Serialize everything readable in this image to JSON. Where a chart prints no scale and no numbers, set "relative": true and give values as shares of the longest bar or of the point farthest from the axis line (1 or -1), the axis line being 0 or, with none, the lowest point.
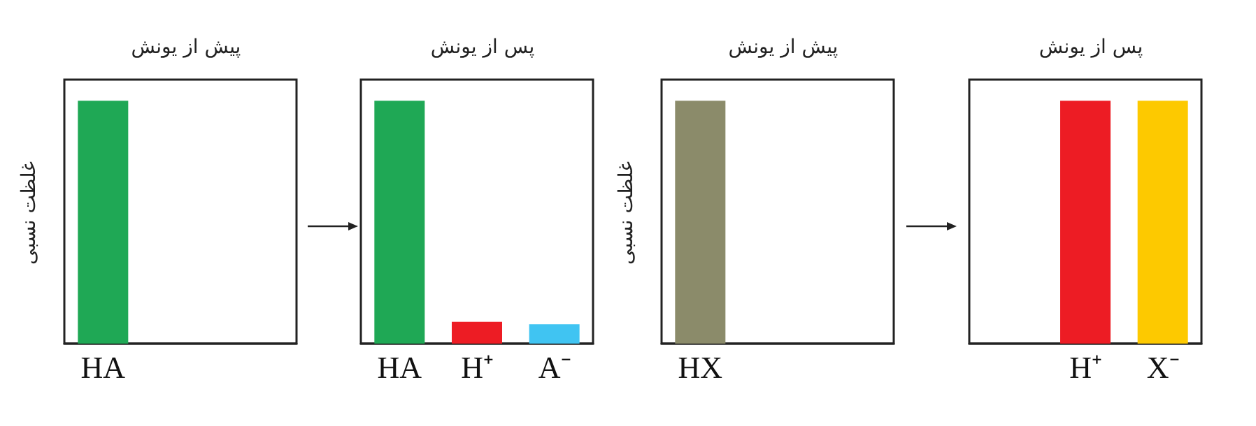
{
  "chart_data": [
    {
      "type": "bar",
      "title": "پیش از یونش",
      "ylabel": "غلظت نسبی",
      "categories": [
        "HA"
      ],
      "values": [
        1
      ],
      "colors": [
        "#1fa855"
      ],
      "relative": true
    },
    {
      "type": "bar",
      "title": "پس از یونش",
      "categories": [
        "HA",
        "H⁺",
        "A⁻"
      ],
      "values": [
        1,
        0.09,
        0.08
      ],
      "colors": [
        "#1fa855",
        "#ed1c24",
        "#40c4f2"
      ],
      "relative": true
    },
    {
      "type": "bar",
      "title": "پیش از یونش",
      "ylabel": "غلظت نسبی",
      "categories": [
        "HX"
      ],
      "values": [
        1
      ],
      "colors": [
        "#8b8b6a"
      ],
      "relative": true
    },
    {
      "type": "bar",
      "title": "پس از یونش",
      "categories": [
        null,
        "H⁺",
        "X⁻"
      ],
      "values": [
        null,
        1,
        1
      ],
      "colors": [
        null,
        "#ed1c24",
        "#fdc900"
      ],
      "relative": true
    }
  ]
}
